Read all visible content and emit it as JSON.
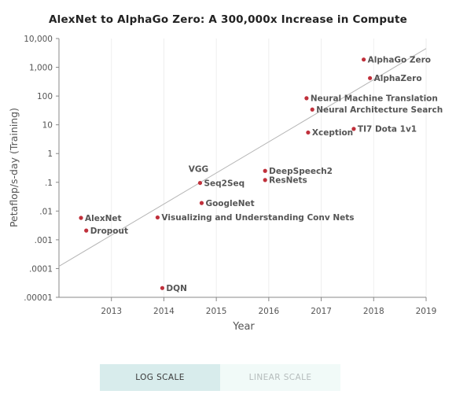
{
  "chart_data": {
    "type": "scatter",
    "title": "AlexNet to AlphaGo Zero: A 300,000x Increase in Compute",
    "xlabel": "Year",
    "ylabel": "Petaflop/s-day (Training)",
    "y_scale": "log",
    "xlim": [
      2012,
      2019
    ],
    "ylim": [
      1e-05,
      10000
    ],
    "x_ticks": [
      "2013",
      "2014",
      "2015",
      "2016",
      "2017",
      "2018",
      "2019"
    ],
    "y_ticks": [
      {
        "value": 10000,
        "label": "10,000"
      },
      {
        "value": 1000,
        "label": "1,000"
      },
      {
        "value": 100,
        "label": "100"
      },
      {
        "value": 10,
        "label": "10"
      },
      {
        "value": 1,
        "label": "1"
      },
      {
        "value": 0.1,
        "label": ".1"
      },
      {
        "value": 0.01,
        "label": ".01"
      },
      {
        "value": 0.001,
        "label": ".001"
      },
      {
        "value": 0.0001,
        "label": ".0001"
      },
      {
        "value": 1e-05,
        "label": ".00001"
      }
    ],
    "grid": "vertical",
    "point_color": "#c0303b",
    "trend_color": "#b5b5b5",
    "trendline": [
      {
        "x": 2012,
        "y": 0.00012
      },
      {
        "x": 2019,
        "y": 4500
      }
    ],
    "points": [
      {
        "label": "AlexNet",
        "x": 2012.42,
        "y": 0.0058,
        "label_pos": "right"
      },
      {
        "label": "Dropout",
        "x": 2012.52,
        "y": 0.0021,
        "label_pos": "right"
      },
      {
        "label": "Visualizing and Understanding Conv Nets",
        "x": 2013.88,
        "y": 0.006,
        "label_pos": "right"
      },
      {
        "label": "DQN",
        "x": 2013.97,
        "y": 2.1e-05,
        "label_pos": "right"
      },
      {
        "label": "GoogleNet",
        "x": 2014.72,
        "y": 0.019,
        "label_pos": "right"
      },
      {
        "label": "Seq2Seq",
        "x": 2014.69,
        "y": 0.095,
        "label_pos": "right"
      },
      {
        "label": "VGG",
        "x": 2014.69,
        "y": 0.095,
        "label_pos": "above"
      },
      {
        "label": "DeepSpeech2",
        "x": 2015.93,
        "y": 0.25,
        "label_pos": "right"
      },
      {
        "label": "ResNets",
        "x": 2015.93,
        "y": 0.12,
        "label_pos": "right"
      },
      {
        "label": "Neural Machine Translation",
        "x": 2016.72,
        "y": 84,
        "label_pos": "right"
      },
      {
        "label": "Neural Architecture Search",
        "x": 2016.83,
        "y": 34,
        "label_pos": "right"
      },
      {
        "label": "Xception",
        "x": 2016.75,
        "y": 5.4,
        "label_pos": "right"
      },
      {
        "label": "TI7 Dota 1v1",
        "x": 2017.62,
        "y": 7.2,
        "label_pos": "right"
      },
      {
        "label": "AlphaGo Zero",
        "x": 2017.81,
        "y": 1860,
        "label_pos": "right"
      },
      {
        "label": "AlphaZero",
        "x": 2017.93,
        "y": 420,
        "label_pos": "right"
      }
    ]
  },
  "scale_toggle": {
    "log_label": "LOG SCALE",
    "linear_label": "LINEAR SCALE",
    "selected": "LOG SCALE"
  }
}
